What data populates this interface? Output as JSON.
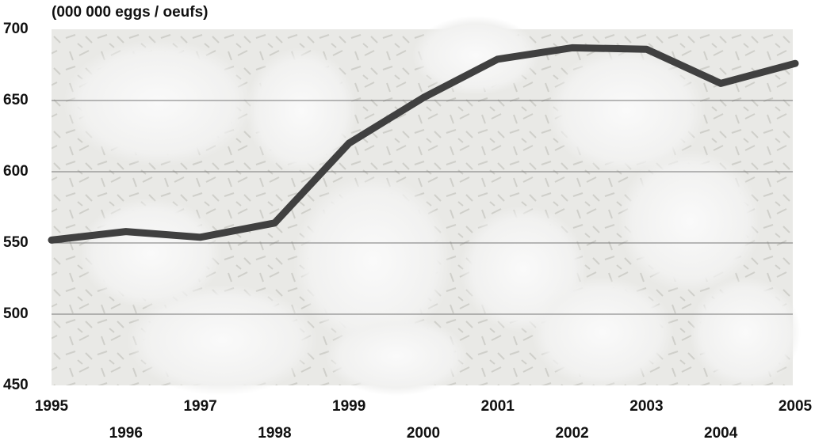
{
  "chart_data": {
    "type": "line",
    "title": "(000 000 eggs / oeufs)",
    "x": [
      1995,
      1996,
      1997,
      1998,
      1999,
      2000,
      2001,
      2002,
      2003,
      2004,
      2005
    ],
    "series": [
      {
        "color": "#404040",
        "values": [
          552,
          558,
          554,
          564,
          620,
          652,
          679,
          687,
          686,
          662,
          676
        ]
      }
    ],
    "xlim": [
      1995,
      2005
    ],
    "xticks": [
      1995,
      1996,
      1997,
      1998,
      1999,
      2000,
      2001,
      2002,
      2003,
      2004,
      2005
    ],
    "ylim": [
      450,
      700
    ],
    "yticks": [
      450,
      500,
      550,
      600,
      650,
      700
    ],
    "grid": true
  }
}
